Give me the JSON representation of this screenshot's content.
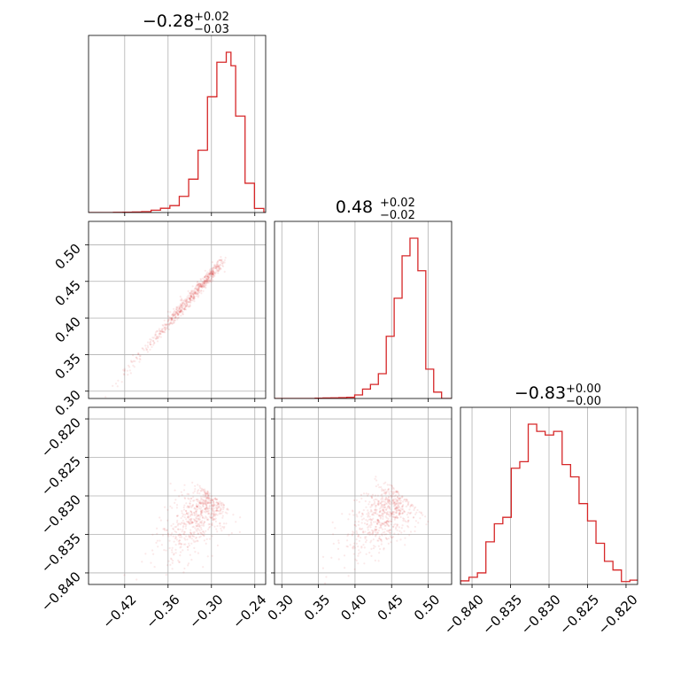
{
  "chart_data": {
    "type": "corner",
    "color": "#d62728",
    "grid": true,
    "parameters": [
      {
        "title": {
          "main": "−0.28",
          "sup": "+0.02",
          "sub": "−0.03"
        },
        "range": [
          -0.47,
          -0.225
        ],
        "ticks": [
          -0.42,
          -0.36,
          -0.3,
          -0.24
        ],
        "tick_labels": [
          "−0.42",
          "−0.36",
          "−0.30",
          "−0.24"
        ]
      },
      {
        "title": {
          "main": "0.48",
          "sup": "+0.02",
          "sub": "−0.02"
        },
        "range": [
          0.29,
          0.532
        ],
        "ticks": [
          0.3,
          0.35,
          0.4,
          0.45,
          0.5
        ],
        "tick_labels": [
          "0.30",
          "0.35",
          "0.40",
          "0.45",
          "0.50"
        ]
      },
      {
        "title": {
          "main": "−0.83",
          "sup": "+0.00",
          "sub": "−0.00"
        },
        "range": [
          -0.8415,
          -0.8185
        ],
        "ticks": [
          -0.84,
          -0.835,
          -0.83,
          -0.825,
          -0.82
        ],
        "tick_labels": [
          "−0.840",
          "−0.835",
          "−0.830",
          "−0.825",
          "−0.820"
        ]
      }
    ],
    "histograms": [
      {
        "edges": [
          -0.47,
          -0.4355,
          -0.4225,
          -0.4095,
          -0.3965,
          -0.3835,
          -0.3705,
          -0.3575,
          -0.3445,
          -0.3315,
          -0.3185,
          -0.3055,
          -0.2925,
          -0.2795,
          -0.273,
          -0.2665,
          -0.2535,
          -0.2405,
          -0.2275,
          -0.225
        ],
        "counts": [
          0,
          1,
          2,
          3,
          5,
          13,
          24,
          39,
          91,
          188,
          351,
          652,
          847,
          903,
          827,
          543,
          165,
          23,
          0
        ]
      },
      {
        "edges": [
          0.29,
          0.3455,
          0.3563,
          0.3671,
          0.3779,
          0.3887,
          0.3995,
          0.4103,
          0.4211,
          0.4319,
          0.4427,
          0.4535,
          0.4643,
          0.4751,
          0.4859,
          0.4967,
          0.5075,
          0.5183,
          0.532
        ],
        "counts": [
          0,
          2,
          3,
          4,
          5,
          7,
          21,
          56,
          84,
          148,
          371,
          598,
          851,
          956,
          762,
          175,
          38,
          0
        ]
      },
      {
        "edges": [
          -0.8415,
          -0.8404,
          -0.8393,
          -0.8382,
          -0.8371,
          -0.836,
          -0.8349,
          -0.8338,
          -0.8327,
          -0.8316,
          -0.8305,
          -0.8294,
          -0.8283,
          -0.8272,
          -0.8261,
          -0.825,
          -0.8239,
          -0.8228,
          -0.8217,
          -0.8206,
          -0.8195,
          -0.8185
        ],
        "counts": [
          5,
          10,
          16,
          59,
          84,
          93,
          161,
          170,
          222,
          212,
          207,
          212,
          166,
          149,
          112,
          88,
          57,
          32,
          20,
          4,
          6
        ]
      }
    ],
    "pairs": [
      {
        "x": 0,
        "y": 1,
        "slope": 1.13,
        "x_center": -0.28,
        "y_center": 0.483
      },
      {
        "x": 0,
        "y": 2,
        "slope": 0.117,
        "x_center": -0.284,
        "y_center": -0.8295
      },
      {
        "x": 1,
        "y": 2,
        "slope": 0.104,
        "x_center": 0.478,
        "y_center": -0.8295
      }
    ]
  }
}
